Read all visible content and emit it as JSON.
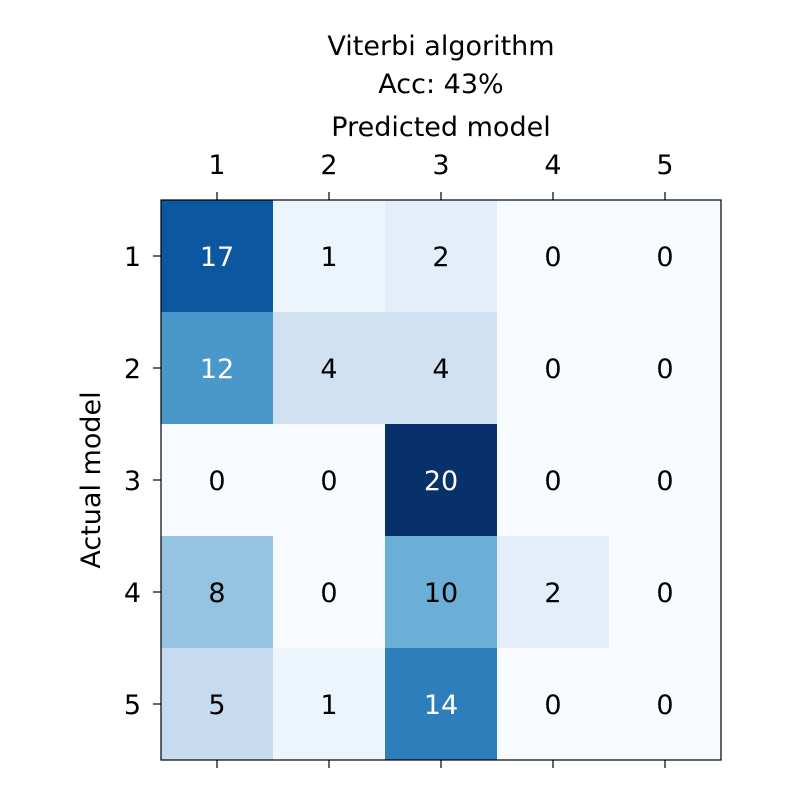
{
  "chart_data": {
    "type": "heatmap",
    "title_line1": "Viterbi algorithm",
    "title_line2": "Acc: 43%",
    "xlabel": "Predicted model",
    "ylabel": "Actual model",
    "x_categories": [
      "1",
      "2",
      "3",
      "4",
      "5"
    ],
    "y_categories": [
      "1",
      "2",
      "3",
      "4",
      "5"
    ],
    "values": [
      [
        17,
        1,
        2,
        0,
        0
      ],
      [
        12,
        4,
        4,
        0,
        0
      ],
      [
        0,
        0,
        20,
        0,
        0
      ],
      [
        8,
        0,
        10,
        2,
        0
      ],
      [
        5,
        1,
        14,
        0,
        0
      ]
    ],
    "vmin": 0,
    "vmax": 20,
    "colormap": "Blues",
    "x_axis_position": "top"
  }
}
